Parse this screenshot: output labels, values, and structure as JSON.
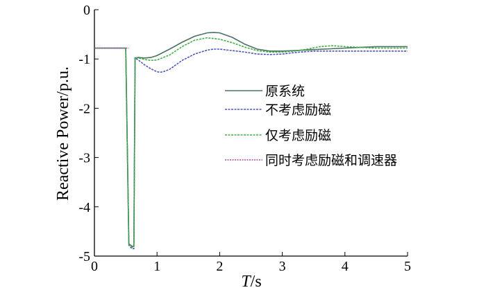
{
  "chart_data": {
    "type": "line",
    "title": "",
    "xlabel_italic": "T",
    "xlabel_unit": "/s",
    "ylabel": "Reactive Power/p.u.",
    "xlim": [
      0,
      5
    ],
    "ylim": [
      -5,
      0
    ],
    "xticks": [
      0,
      1,
      2,
      3,
      4,
      5
    ],
    "yticks": [
      0,
      -1,
      -2,
      -3,
      -4,
      -5
    ],
    "grid": false,
    "legend_position": "center-right",
    "series": [
      {
        "name": "原系统",
        "color": "#4a7060",
        "x": [
          0,
          0.5,
          0.55,
          0.6,
          0.63,
          0.65,
          0.7,
          0.8,
          0.9,
          1.0,
          1.2,
          1.4,
          1.6,
          1.8,
          1.9,
          2.0,
          2.2,
          2.4,
          2.6,
          2.8,
          3.0,
          3.2,
          3.5,
          4.0,
          4.5,
          5.0
        ],
        "y": [
          -0.78,
          -0.78,
          -4.75,
          -4.8,
          -4.8,
          -0.98,
          -0.97,
          -0.98,
          -0.97,
          -0.93,
          -0.8,
          -0.66,
          -0.54,
          -0.47,
          -0.46,
          -0.47,
          -0.56,
          -0.7,
          -0.8,
          -0.84,
          -0.84,
          -0.83,
          -0.81,
          -0.78,
          -0.75,
          -0.75
        ]
      },
      {
        "name": "不考虑励磁",
        "color": "#4d55c0",
        "x": [
          0,
          0.5,
          0.55,
          0.6,
          0.63,
          0.65,
          0.7,
          0.8,
          0.9,
          1.0,
          1.05,
          1.1,
          1.2,
          1.4,
          1.6,
          1.8,
          1.9,
          2.0,
          2.2,
          2.4,
          2.6,
          2.8,
          3.0,
          3.2,
          3.5,
          4.0,
          4.5,
          5.0
        ],
        "y": [
          -0.78,
          -0.78,
          -4.78,
          -4.85,
          -4.85,
          -0.98,
          -1.02,
          -1.12,
          -1.2,
          -1.26,
          -1.27,
          -1.26,
          -1.21,
          -1.03,
          -0.9,
          -0.82,
          -0.8,
          -0.8,
          -0.83,
          -0.86,
          -0.9,
          -0.91,
          -0.9,
          -0.87,
          -0.84,
          -0.84,
          -0.84,
          -0.84
        ]
      },
      {
        "name": "仅考虑励磁",
        "color": "#40b040",
        "x": [
          0,
          0.5,
          0.55,
          0.6,
          0.63,
          0.65,
          0.7,
          0.8,
          0.9,
          1.0,
          1.2,
          1.4,
          1.6,
          1.8,
          2.0,
          2.2,
          2.4,
          2.6,
          2.8,
          3.0,
          3.2,
          3.4,
          3.6,
          3.8,
          4.0,
          4.5,
          5.0
        ],
        "y": [
          -0.78,
          -0.78,
          -4.76,
          -4.82,
          -4.82,
          -0.98,
          -0.98,
          -1.01,
          -1.03,
          -1.02,
          -0.92,
          -0.75,
          -0.62,
          -0.57,
          -0.6,
          -0.67,
          -0.76,
          -0.83,
          -0.86,
          -0.86,
          -0.84,
          -0.8,
          -0.75,
          -0.73,
          -0.75,
          -0.78,
          -0.78
        ]
      },
      {
        "name": "同时考虑励磁和调速器",
        "color": "#b040b0",
        "x": [
          0,
          0.5,
          0.55
        ],
        "y": [
          -0.78,
          -0.78,
          -0.78
        ]
      }
    ],
    "legend": {
      "entries": [
        "原系统",
        "不考虑励磁",
        "仅考虑励磁",
        "同时考虑励磁和调速器"
      ]
    }
  }
}
